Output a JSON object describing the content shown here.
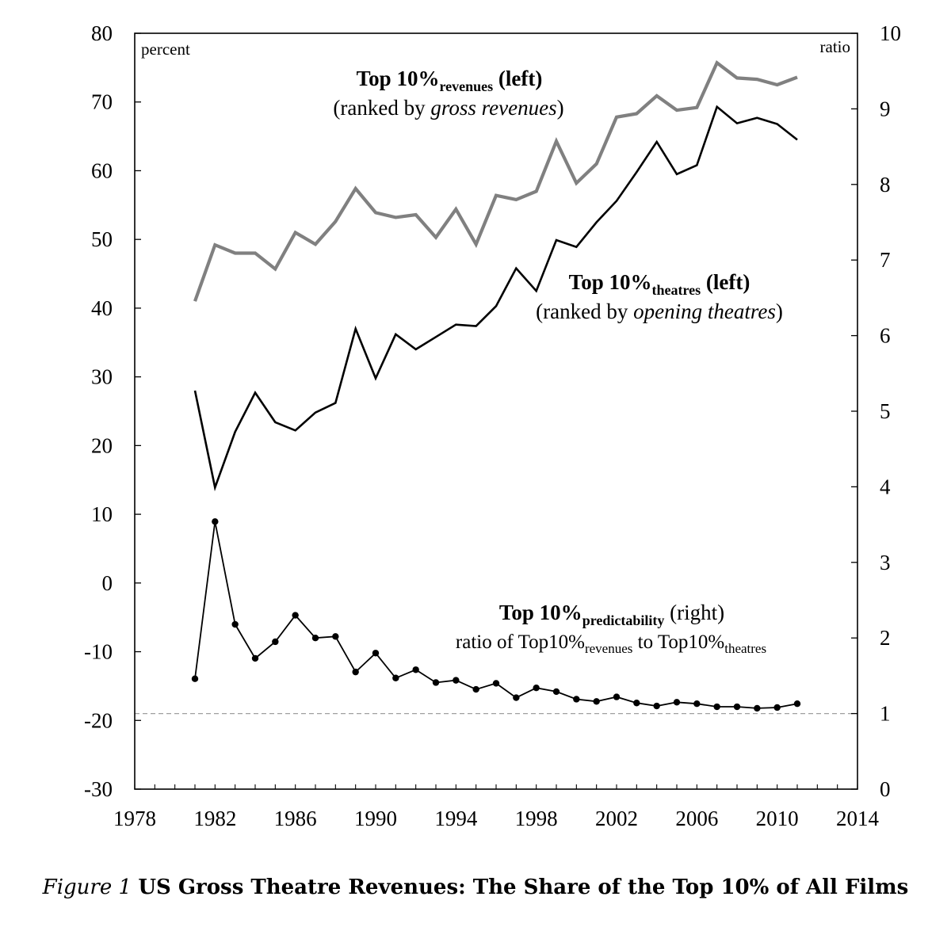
{
  "chart_data": {
    "type": "line",
    "x": [
      1981,
      1982,
      1983,
      1984,
      1985,
      1986,
      1987,
      1988,
      1989,
      1990,
      1991,
      1992,
      1993,
      1994,
      1995,
      1996,
      1997,
      1998,
      1999,
      2000,
      2001,
      2002,
      2003,
      2004,
      2005,
      2006,
      2007,
      2008,
      2009,
      2010,
      2011
    ],
    "xlim": [
      1978,
      2014
    ],
    "xticks": [
      "1978",
      "1982",
      "1986",
      "1990",
      "1994",
      "1998",
      "2002",
      "2006",
      "2010",
      "2014"
    ],
    "ylim_left": [
      -30,
      80
    ],
    "yticks_left": [
      "80",
      "70",
      "60",
      "50",
      "40",
      "30",
      "20",
      "10",
      "0",
      "-10",
      "-20",
      "-30"
    ],
    "ylabel_left": "percent",
    "ylim_right": [
      0,
      10
    ],
    "yticks_right": [
      "10",
      "9",
      "8",
      "7",
      "6",
      "5",
      "4",
      "3",
      "2",
      "1",
      "0"
    ],
    "ylabel_right": "ratio",
    "reference_line_right": 1,
    "series": [
      {
        "name": "Top 10% revenues (left)",
        "axis": "left",
        "color": "#808080",
        "values": [
          41,
          49.2,
          48,
          48,
          45.7,
          51,
          49.3,
          52.6,
          57.4,
          53.9,
          53.2,
          53.6,
          50.3,
          54.4,
          49.3,
          56.4,
          55.8,
          57,
          64.3,
          58.2,
          61,
          67.8,
          68.3,
          70.9,
          68.8,
          69.2,
          75.7,
          73.5,
          73.3,
          72.5,
          73.6
        ]
      },
      {
        "name": "Top 10% theatres (left)",
        "axis": "left",
        "color": "#000000",
        "values": [
          28,
          13.9,
          22,
          27.7,
          23.4,
          22.2,
          24.8,
          26.2,
          37,
          29.8,
          36.2,
          34,
          35.8,
          37.6,
          37.4,
          40.3,
          45.8,
          42.5,
          49.9,
          48.9,
          52.5,
          55.6,
          59.8,
          64.2,
          59.5,
          60.8,
          69.3,
          66.9,
          67.7,
          66.8,
          64.5
        ]
      },
      {
        "name": "Top 10% predictability (right)",
        "axis": "right",
        "color": "#000000",
        "markers": true,
        "values": [
          1.46,
          3.54,
          2.18,
          1.73,
          1.95,
          2.3,
          2.0,
          2.02,
          1.55,
          1.8,
          1.47,
          1.58,
          1.41,
          1.44,
          1.32,
          1.4,
          1.21,
          1.34,
          1.29,
          1.19,
          1.16,
          1.22,
          1.14,
          1.1,
          1.15,
          1.13,
          1.09,
          1.09,
          1.07,
          1.08,
          1.13
        ]
      }
    ],
    "annotations": {
      "revenues": {
        "main": "Top 10%",
        "sub": "revenues",
        "tail": " (left)",
        "line2_pre": "(ranked by ",
        "line2_it": "gross revenues",
        "line2_post": ")"
      },
      "theatres": {
        "main": "Top 10%",
        "sub": "theatres",
        "tail": " (left)",
        "line2_pre": "(ranked by ",
        "line2_it": "opening theatres",
        "line2_post": ")"
      },
      "predictability": {
        "main": "Top 10%",
        "sub": "predictability",
        "tail": " (right)",
        "line2_a": "ratio of Top10%",
        "line2_sub1": "revenues",
        "line2_b": " to Top10%",
        "line2_sub2": "theatres"
      }
    }
  },
  "caption": {
    "figure_label": "Figure 1",
    "title": "US Gross Theatre Revenues: The Share of the Top 10% of All Films"
  }
}
